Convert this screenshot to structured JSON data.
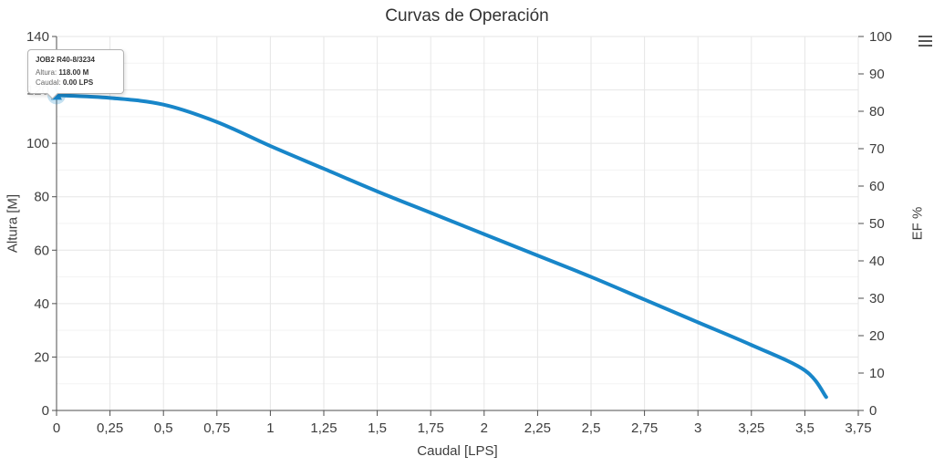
{
  "title": "Curvas de Operación",
  "axes": {
    "x": {
      "label": "Caudal [LPS]",
      "min": 0,
      "max": 3.75,
      "tick_values": [
        0,
        0.25,
        0.5,
        0.75,
        1,
        1.25,
        1.5,
        1.75,
        2,
        2.25,
        2.5,
        2.75,
        3,
        3.25,
        3.5,
        3.75
      ],
      "tick_labels": [
        "0",
        "0,25",
        "0,5",
        "0,75",
        "1",
        "1,25",
        "1,5",
        "1,75",
        "2",
        "2,25",
        "2,5",
        "2,75",
        "3",
        "3,25",
        "3,5",
        "3,75"
      ]
    },
    "y_left": {
      "label": "Altura [M]",
      "min": 0,
      "max": 140,
      "tick_step": 20,
      "minor_step": 10,
      "tick_labels": [
        "0",
        "20",
        "40",
        "60",
        "80",
        "100",
        "120",
        "140"
      ]
    },
    "y_right": {
      "label": "EF %",
      "min": 0,
      "max": 100,
      "tick_step": 10,
      "tick_labels": [
        "0",
        "10",
        "20",
        "30",
        "40",
        "50",
        "60",
        "70",
        "80",
        "90",
        "100"
      ]
    }
  },
  "tooltip": {
    "title": "JOB2 R40-8/3234",
    "rows": [
      {
        "label": "Altura:",
        "value": "118.00 M"
      },
      {
        "label": "Caudal:",
        "value": "0.00 LPS"
      }
    ]
  },
  "menu_icon": "hamburger-menu",
  "chart_data": {
    "type": "line",
    "title": "Curvas de Operación",
    "xlabel": "Caudal [LPS]",
    "ylabel": "Altura [M]",
    "ylabel_right": "EF %",
    "xlim": [
      0,
      3.75
    ],
    "ylim": [
      0,
      140
    ],
    "ylim_right": [
      0,
      100
    ],
    "grid": true,
    "legend": false,
    "series": [
      {
        "name": "JOB2 R40-8/3234",
        "yaxis": "left",
        "color": "#1886c9",
        "x": [
          0,
          0.25,
          0.5,
          0.75,
          1,
          1.25,
          1.5,
          1.75,
          2,
          2.25,
          2.5,
          2.75,
          3,
          3.25,
          3.5,
          3.6
        ],
        "y": [
          118,
          117,
          114.5,
          108,
          99,
          90.5,
          82,
          74,
          66,
          58,
          50,
          41.5,
          33,
          24.5,
          15,
          5
        ]
      }
    ],
    "highlight_point": {
      "x": 0,
      "y": 118,
      "marker": "triangle-up",
      "tooltip": "JOB2 R40-8/3234 — Altura: 118.00 M, Caudal: 0.00 LPS"
    }
  },
  "colors": {
    "curve": "#1886c9",
    "halo": "#1886c9",
    "grid_major": "#e6e6e6",
    "grid_minor": "#f3f3f3",
    "axis": "#4f4f4f",
    "text": "#3d3d3d",
    "tooltip_border": "#b3b3b3"
  }
}
